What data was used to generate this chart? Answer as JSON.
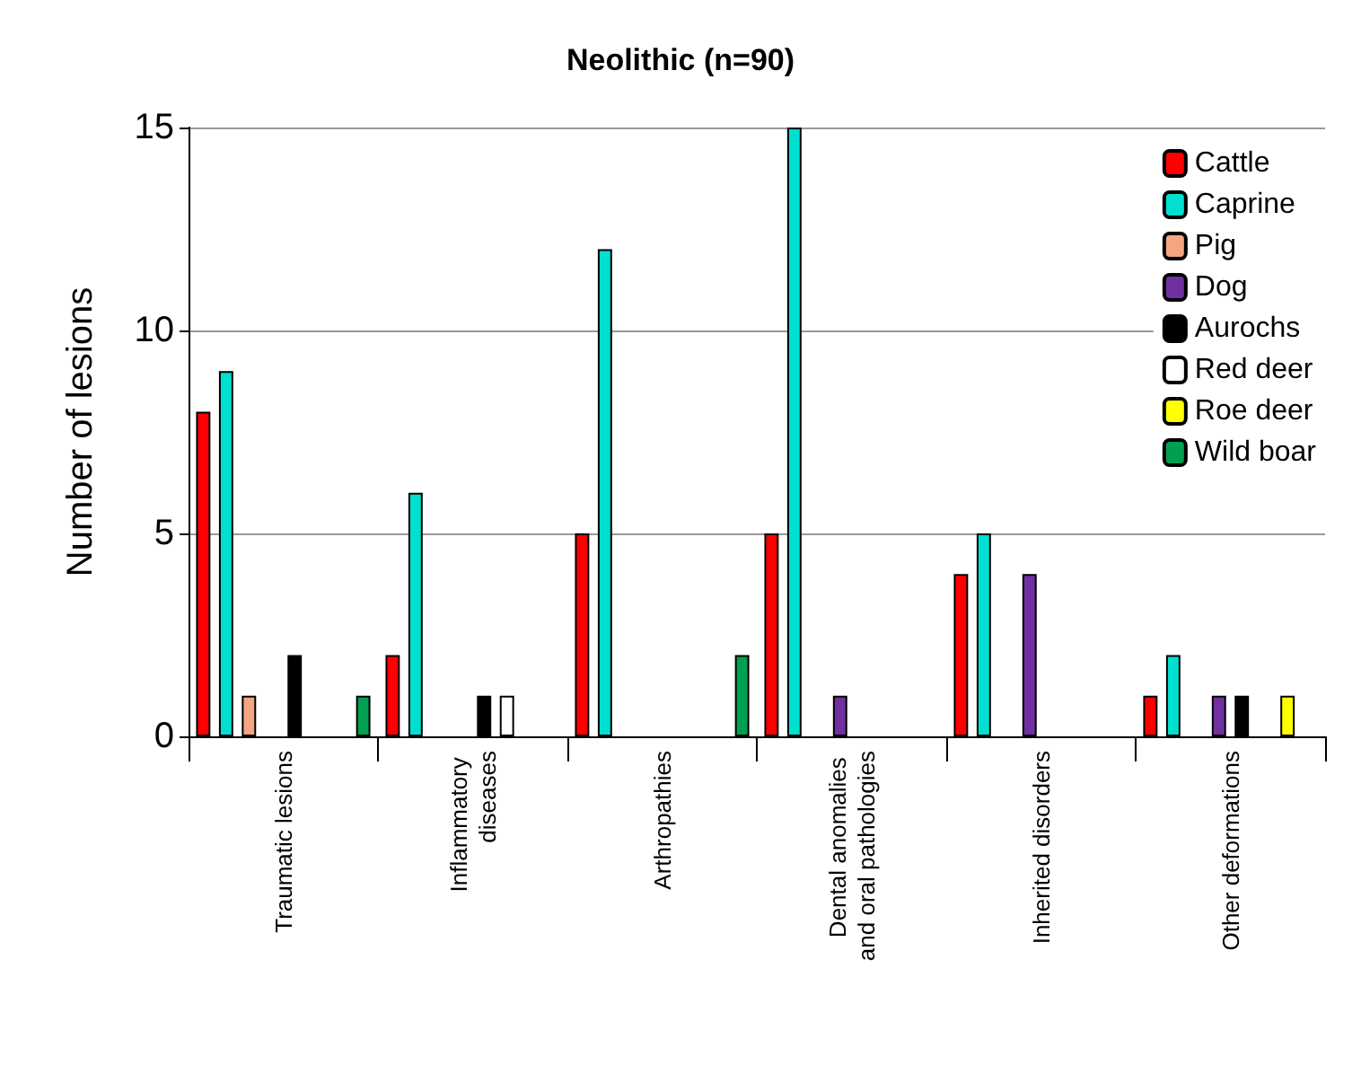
{
  "chart_data": {
    "type": "bar",
    "title": "Neolithic (n=90)",
    "ylabel": "Number of lesions",
    "categories": [
      "Traumatic lesions",
      "Inflammatory diseases",
      "Arthropathies",
      "Dental anomalies and oral pathologies",
      "Inherited disorders",
      "Other deformations"
    ],
    "series": [
      {
        "name": "Cattle",
        "color": "#ff0000",
        "values": [
          8,
          2,
          5,
          5,
          4,
          1
        ]
      },
      {
        "name": "Caprine",
        "color": "#00e0d0",
        "values": [
          9,
          6,
          12,
          15,
          5,
          2
        ]
      },
      {
        "name": "Pig",
        "color": "#f4a582",
        "values": [
          1,
          null,
          null,
          null,
          null,
          null
        ]
      },
      {
        "name": "Dog",
        "color": "#7030a0",
        "values": [
          null,
          null,
          null,
          1,
          4,
          1
        ]
      },
      {
        "name": "Aurochs",
        "color": "#000000",
        "values": [
          2,
          1,
          null,
          null,
          null,
          1
        ]
      },
      {
        "name": "Red deer",
        "color": "#ffffff",
        "values": [
          null,
          1,
          null,
          null,
          null,
          null
        ]
      },
      {
        "name": "Roe deer",
        "color": "#ffff00",
        "values": [
          null,
          null,
          null,
          null,
          null,
          1
        ]
      },
      {
        "name": "Wild boar",
        "color": "#00a050",
        "values": [
          1,
          null,
          2,
          null,
          null,
          null
        ]
      }
    ],
    "ylim": [
      0,
      15
    ],
    "yticks": [
      0,
      5,
      10,
      15
    ],
    "grid": "y",
    "legend": "top right"
  }
}
